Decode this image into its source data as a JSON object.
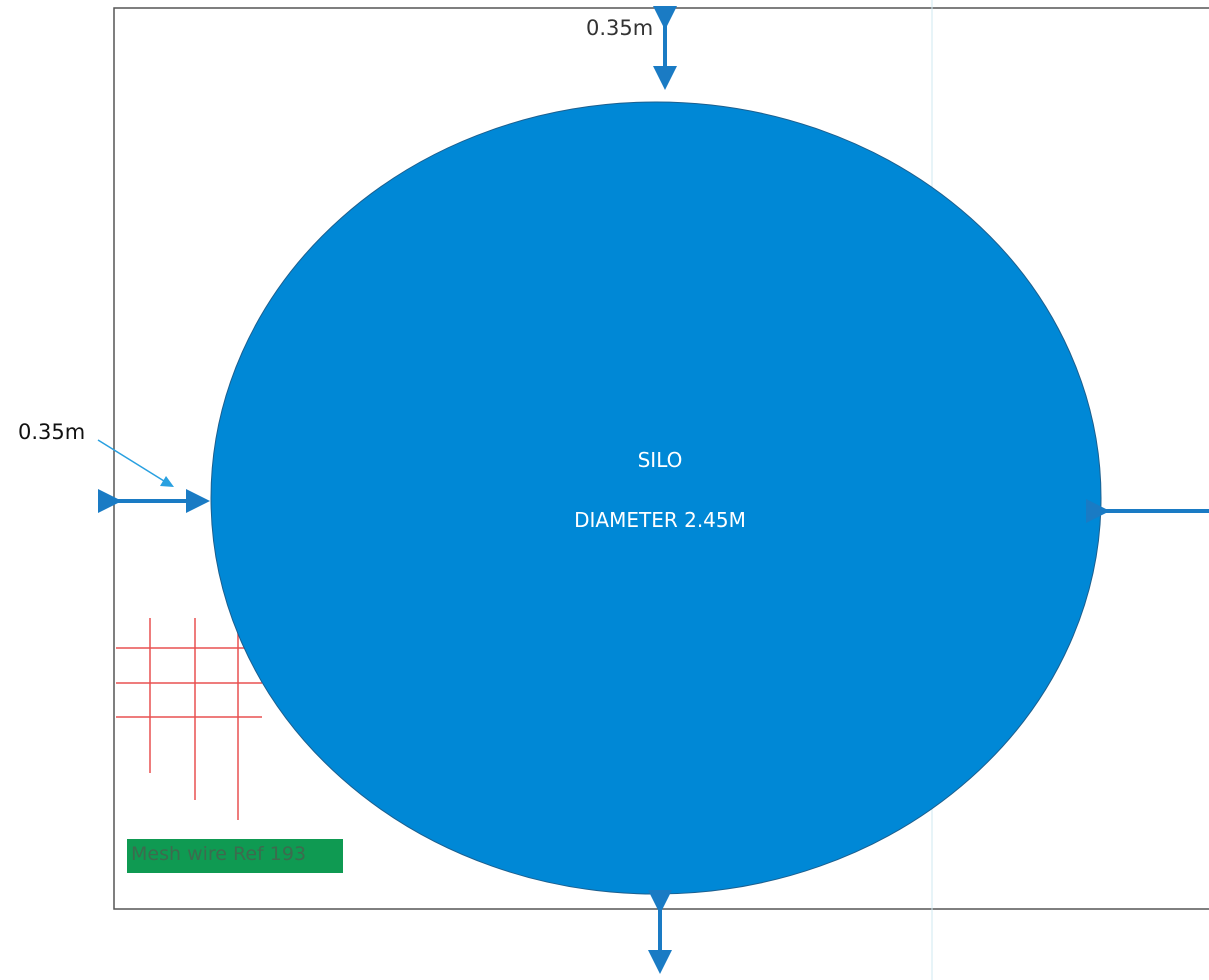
{
  "diagram": {
    "silo": {
      "title": "SILO",
      "diameter_text": "DIAMETER 2.45M"
    },
    "clearance_top": "0.35m",
    "clearance_left": "0.35m",
    "mesh_label": "Mesh wire Ref 193",
    "colors": {
      "silo_fill": "#0088d6",
      "arrow": "#1a7bc4",
      "mesh_lines": "#e85050",
      "mesh_label_bg": "#0f9a52",
      "frame": "#555555"
    }
  }
}
